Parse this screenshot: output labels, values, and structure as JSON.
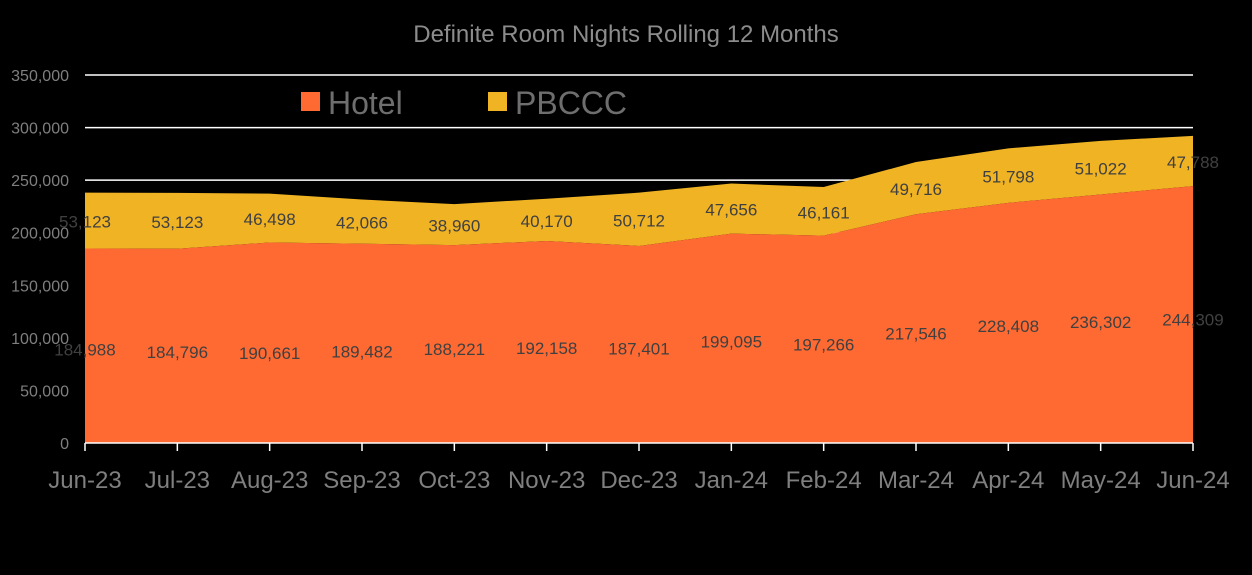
{
  "chart_data": {
    "type": "area",
    "stacked": true,
    "title": "Definite Room Nights  Rolling  12 Months",
    "xlabel": "",
    "ylabel": "",
    "categories": [
      "Jun-23",
      "Jul-23",
      "Aug-23",
      "Sep-23",
      "Oct-23",
      "Nov-23",
      "Dec-23",
      "Jan-24",
      "Feb-24",
      "Mar-24",
      "Apr-24",
      "May-24",
      "Jun-24"
    ],
    "series": [
      {
        "name": "Hotel",
        "color": "#ff6a33",
        "values": [
          184988,
          184796,
          190661,
          189482,
          188221,
          192158,
          187401,
          199095,
          197266,
          217546,
          228408,
          236302,
          244309
        ],
        "labels": [
          "184,988",
          "184,796",
          "190,661",
          "189,482",
          "188,221",
          "192,158",
          "187,401",
          "199,095",
          "197,266",
          "217,546",
          "228,408",
          "236,302",
          "244,309"
        ]
      },
      {
        "name": "PBCCC",
        "color": "#f0b323",
        "values": [
          53123,
          53123,
          46498,
          42066,
          38960,
          40170,
          50712,
          47656,
          46161,
          49716,
          51798,
          51022,
          47788
        ],
        "labels": [
          "53,123",
          "53,123",
          "46,498",
          "42,066",
          "38,960",
          "40,170",
          "50,712",
          "47,656",
          "46,161",
          "49,716",
          "51,798",
          "51,022",
          "47,788"
        ]
      }
    ],
    "ylim": [
      0,
      350000
    ],
    "yticks": [
      0,
      50000,
      100000,
      150000,
      200000,
      250000,
      300000,
      350000
    ],
    "ytick_labels": [
      "0",
      "50,000",
      "100,000",
      "150,000",
      "200,000",
      "250,000",
      "300,000",
      "350,000"
    ],
    "grid": true,
    "legend": "top-left",
    "background": "#000000",
    "gridline_color": "#ffffff"
  }
}
